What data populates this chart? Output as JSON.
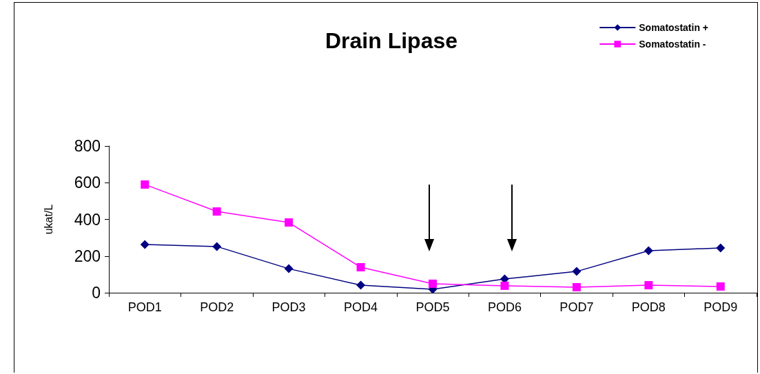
{
  "chart_data": {
    "type": "line",
    "title": "Drain Lipase",
    "ylabel": "ukat/L",
    "categories": [
      "POD1",
      "POD2",
      "POD3",
      "POD4",
      "POD5",
      "POD6",
      "POD7",
      "POD8",
      "POD9"
    ],
    "series": [
      {
        "name": "Somatostatin +",
        "color": "#000080",
        "marker": "diamond",
        "values": [
          263,
          252,
          131,
          41,
          19,
          75,
          116,
          229,
          244
        ]
      },
      {
        "name": "Somatostatin -",
        "color": "#ff00ff",
        "marker": "square",
        "values": [
          590,
          443,
          383,
          139,
          49,
          38,
          30,
          41,
          34
        ]
      }
    ],
    "ylim": [
      0,
      800
    ],
    "yticks": [
      0,
      200,
      400,
      600,
      800
    ],
    "grid": false,
    "legend": "top right"
  }
}
